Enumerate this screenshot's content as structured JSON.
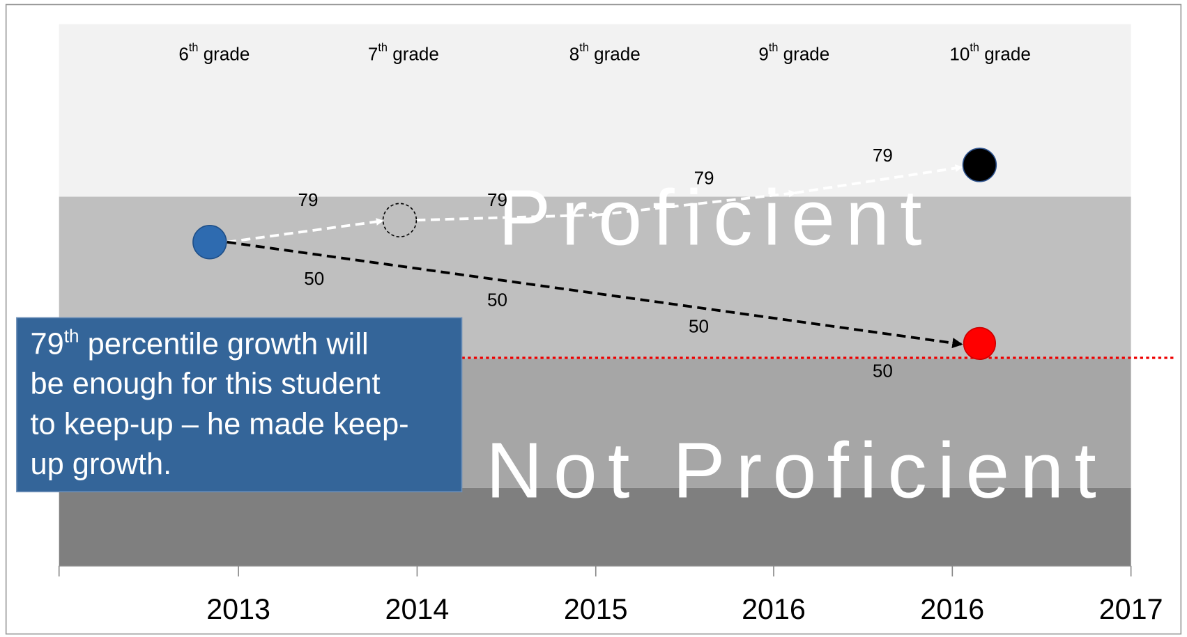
{
  "grades": [
    {
      "number": "6",
      "suffix": "th",
      "text": " grade"
    },
    {
      "number": "7",
      "suffix": "th",
      "text": " grade"
    },
    {
      "number": "8",
      "suffix": "th",
      "text": " grade"
    },
    {
      "number": "9",
      "suffix": "th",
      "text": " grade"
    },
    {
      "number": "10",
      "suffix": "th",
      "text": " grade"
    }
  ],
  "years": [
    "2013",
    "2014",
    "2015",
    "2016",
    "2016",
    "2017"
  ],
  "bands": {
    "upper": "Proficient",
    "lower": "Not Proficient"
  },
  "growth_79_labels": [
    "79",
    "79",
    "79",
    "79"
  ],
  "growth_50_labels": [
    "50",
    "50",
    "50",
    "50"
  ],
  "callout": {
    "first_line": {
      "number": "79",
      "suffix": "th",
      "text": " percentile growth will"
    },
    "lines": [
      "be enough for this student",
      "to keep-up – he made keep-",
      "up growth."
    ]
  }
}
